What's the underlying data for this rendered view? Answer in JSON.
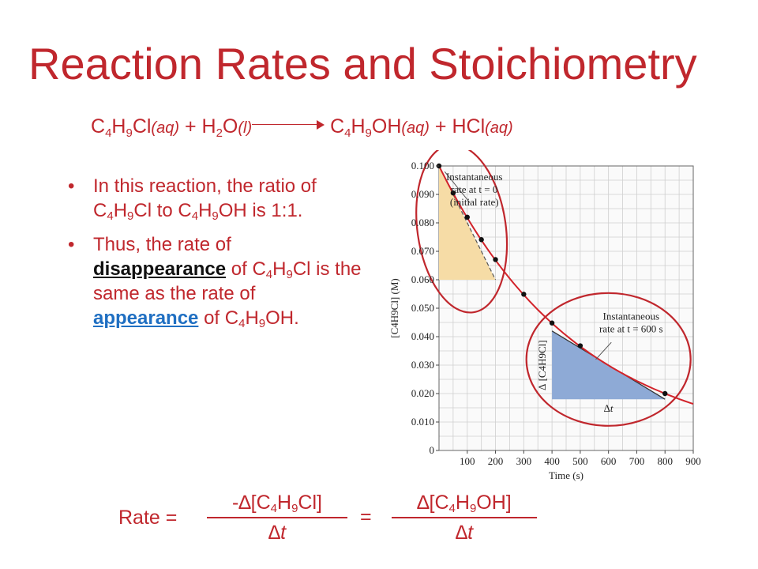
{
  "slide": {
    "title": "Reaction Rates and Stoichiometry"
  },
  "equation": {
    "r1_a": "C",
    "r1_s1": "4",
    "r1_b": "H",
    "r1_s2": "9",
    "r1_c": "Cl",
    "r1_state": "(aq)",
    "plus1": " + ",
    "r2_a": "H",
    "r2_s1": "2",
    "r2_b": "O",
    "r2_state": "(l)",
    "p1_a": "C",
    "p1_s1": "4",
    "p1_b": "H",
    "p1_s2": "9",
    "p1_c": "OH",
    "p1_state": "(aq)",
    "plus2": " + ",
    "p2_a": "HCl",
    "p2_state": "(aq)"
  },
  "bullets": {
    "b1_t1": "In this reaction, the ratio of C",
    "b1_s1": "4",
    "b1_t2": "H",
    "b1_s2": "9",
    "b1_t3": "Cl to C",
    "b1_s3": "4",
    "b1_t4": "H",
    "b1_s4": "9",
    "b1_t5": "OH is 1:1.",
    "b2_t1": "Thus, the rate of ",
    "b2_kw1": "disappearance",
    "b2_t2": " of C",
    "b2_s1": "4",
    "b2_t3": "H",
    "b2_s2": "9",
    "b2_t4": "Cl is the same as the rate of ",
    "b2_kw2": "appearance",
    "b2_t5": " of C",
    "b2_s3": "4",
    "b2_t6": "H",
    "b2_s4": "9",
    "b2_t7": "OH."
  },
  "rate_equation": {
    "label": "Rate =",
    "num1_a": "-∆[C",
    "num1_s1": "4",
    "num1_b": "H",
    "num1_s2": "9",
    "num1_c": "Cl]",
    "den1": "∆t",
    "equals": "=",
    "num2_a": "∆[C",
    "num2_s1": "4",
    "num2_b": "H",
    "num2_s2": "9",
    "num2_c": "OH]",
    "den2": "∆t"
  },
  "colors": {
    "accent": "#c0272d",
    "link": "#1f6fc2",
    "grid": "#cfcfcf",
    "tangent_fill_initial": "#f6dca6",
    "tangent_fill_600s": "#8eaad6",
    "curve": "#d2232a"
  },
  "chart_data": {
    "type": "line",
    "x": [
      0,
      50,
      100,
      150,
      200,
      300,
      400,
      500,
      800
    ],
    "series": [
      {
        "values": [
          0.1,
          0.0905,
          0.082,
          0.0741,
          0.0671,
          0.0549,
          0.0448,
          0.0368,
          0.02
        ]
      }
    ],
    "xlabel": "Time (s)",
    "ylabel": "[C4H9Cl] (M)",
    "xlim": [
      0,
      900
    ],
    "ylim": [
      0,
      0.1
    ],
    "x_ticks": [
      "100",
      "200",
      "300",
      "400",
      "500",
      "600",
      "700",
      "800",
      "900"
    ],
    "y_ticks": [
      "0",
      "0.010",
      "0.020",
      "0.030",
      "0.040",
      "0.050",
      "0.060",
      "0.070",
      "0.080",
      "0.090",
      "0.100"
    ],
    "grid": true,
    "annotations": {
      "initial_l1": "Instantaneous",
      "initial_l2": "rate at t = 0",
      "initial_l3": "(initial rate)",
      "later_l1": "Instantaneous",
      "later_l2": "rate at t = 600 s",
      "delta_c": "∆ [C4H9Cl]",
      "delta_t": "∆t"
    },
    "tangent_initial": {
      "x0": 0,
      "y0": 0.1,
      "x1": 200,
      "y1": 0.06
    },
    "tangent_600": {
      "x0": 400,
      "y0": 0.042,
      "x1": 800,
      "y1": 0.018
    }
  }
}
